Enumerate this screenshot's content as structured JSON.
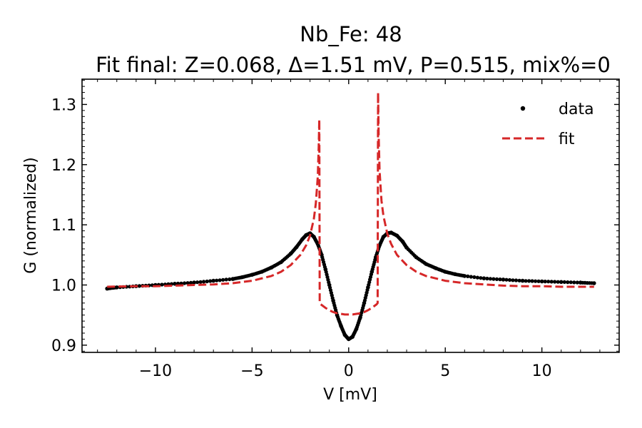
{
  "chart_data": {
    "type": "line",
    "title": "Nb_Fe: 48",
    "subtitle": "Fit final: Z=0.068, Δ=1.51 mV, P=0.515, mix%=0",
    "xlabel": "V [mV]",
    "ylabel": "G (normalized)",
    "xlim": [
      -13.8,
      14.0
    ],
    "ylim": [
      0.888,
      1.342
    ],
    "xticks": [
      -10,
      -5,
      0,
      5,
      10
    ],
    "xtick_labels": [
      "−10",
      "−5",
      "0",
      "5",
      "10"
    ],
    "yticks": [
      0.9,
      1.0,
      1.1,
      1.2,
      1.3
    ],
    "ytick_labels": [
      "0.9",
      "1.0",
      "1.1",
      "1.2",
      "1.3"
    ],
    "grid": false,
    "legend_position": "top-right",
    "series": [
      {
        "name": "data",
        "style": "markers",
        "color": "#000000",
        "x": [
          -12.5,
          -12.0,
          -11.0,
          -10.0,
          -9.0,
          -8.0,
          -7.0,
          -6.0,
          -5.5,
          -5.0,
          -4.5,
          -4.0,
          -3.5,
          -3.0,
          -2.7,
          -2.4,
          -2.2,
          -2.0,
          -1.8,
          -1.6,
          -1.4,
          -1.2,
          -1.0,
          -0.8,
          -0.6,
          -0.4,
          -0.2,
          0.0,
          0.2,
          0.4,
          0.6,
          0.8,
          1.0,
          1.2,
          1.4,
          1.6,
          1.8,
          2.0,
          2.2,
          2.5,
          2.8,
          3.0,
          3.5,
          4.0,
          4.5,
          5.0,
          5.5,
          6.0,
          7.0,
          8.0,
          9.0,
          10.0,
          11.0,
          12.0,
          12.7
        ],
        "y": [
          0.994,
          0.996,
          0.998,
          1.0,
          1.002,
          1.004,
          1.007,
          1.01,
          1.013,
          1.017,
          1.022,
          1.029,
          1.038,
          1.052,
          1.063,
          1.076,
          1.083,
          1.086,
          1.08,
          1.068,
          1.05,
          1.026,
          1.0,
          0.974,
          0.95,
          0.932,
          0.917,
          0.91,
          0.914,
          0.927,
          0.946,
          0.97,
          0.996,
          1.022,
          1.046,
          1.066,
          1.08,
          1.086,
          1.087,
          1.082,
          1.072,
          1.062,
          1.046,
          1.035,
          1.028,
          1.022,
          1.018,
          1.015,
          1.011,
          1.009,
          1.007,
          1.006,
          1.005,
          1.004,
          1.003
        ]
      },
      {
        "name": "fit",
        "style": "dashed",
        "color": "#d62728",
        "x": [
          -12.5,
          -11.0,
          -10.0,
          -9.0,
          -8.0,
          -7.0,
          -6.0,
          -5.0,
          -4.0,
          -3.5,
          -3.0,
          -2.5,
          -2.2,
          -2.0,
          -1.8,
          -1.7,
          -1.6,
          -1.55,
          -1.52,
          -1.5,
          -1.45,
          -1.2,
          -1.0,
          -0.8,
          -0.6,
          -0.4,
          -0.2,
          0.0,
          0.2,
          0.4,
          0.6,
          0.8,
          1.0,
          1.2,
          1.45,
          1.5,
          1.52,
          1.55,
          1.6,
          1.7,
          1.8,
          2.0,
          2.2,
          2.5,
          3.0,
          3.5,
          4.0,
          5.0,
          6.0,
          7.0,
          8.0,
          9.0,
          10.0,
          11.0,
          12.7
        ],
        "y": [
          0.997,
          0.998,
          0.998,
          0.999,
          1.0,
          1.001,
          1.003,
          1.007,
          1.015,
          1.022,
          1.033,
          1.05,
          1.066,
          1.082,
          1.11,
          1.135,
          1.18,
          1.23,
          1.275,
          0.97,
          0.968,
          0.962,
          0.958,
          0.955,
          0.953,
          0.952,
          0.951,
          0.951,
          0.951,
          0.952,
          0.953,
          0.955,
          0.958,
          0.962,
          0.968,
          0.97,
          1.32,
          1.25,
          1.19,
          1.14,
          1.115,
          1.085,
          1.068,
          1.05,
          1.033,
          1.022,
          1.015,
          1.007,
          1.003,
          1.001,
          0.999,
          0.998,
          0.998,
          0.997,
          0.997
        ]
      }
    ]
  }
}
